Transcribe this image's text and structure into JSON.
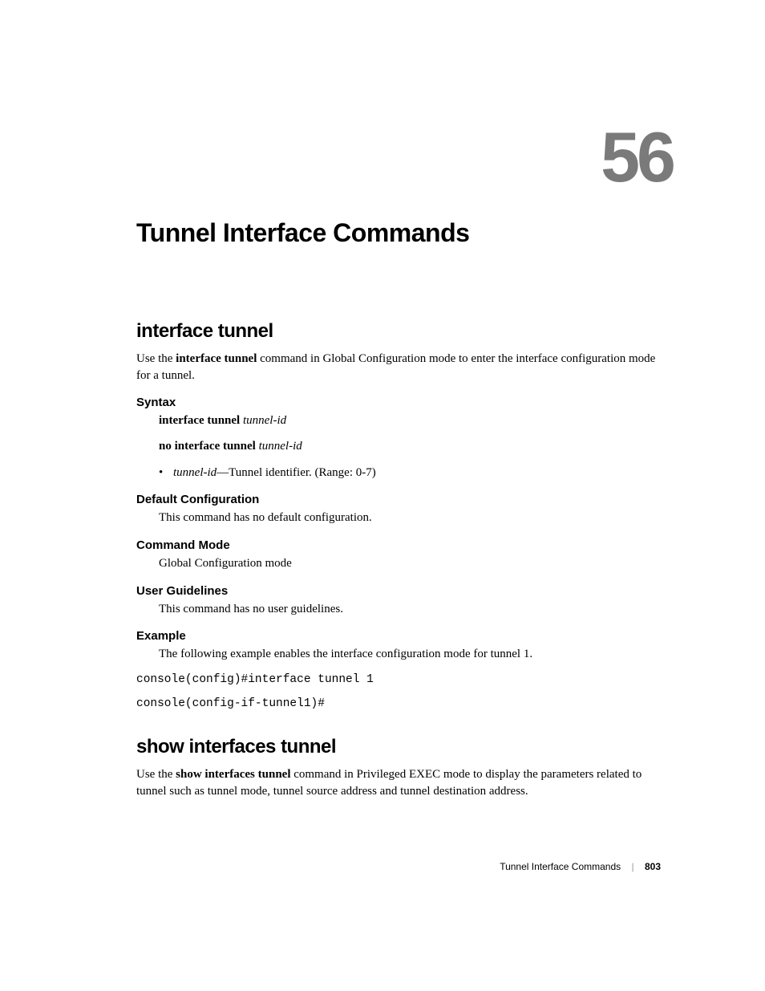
{
  "chapter": {
    "number": "56",
    "title": "Tunnel Interface Commands"
  },
  "sections": {
    "interface_tunnel": {
      "title": "interface tunnel",
      "intro_prefix": "Use the ",
      "intro_cmd": "interface tunnel",
      "intro_suffix": " command in Global Configuration mode to enter the interface configuration mode for a tunnel.",
      "syntax": {
        "heading": "Syntax",
        "line1_cmd": "interface tunnel ",
        "line1_arg": "tunnel-id",
        "line2_cmd": "no interface tunnel ",
        "line2_arg": "tunnel-id",
        "bullet_arg": "tunnel-id",
        "bullet_dash": "—",
        "bullet_desc": "Tunnel identifier",
        "bullet_range": ". (Range: 0-7)"
      },
      "default_config": {
        "heading": "Default Configuration",
        "text": "This command has no default configuration."
      },
      "command_mode": {
        "heading": "Command Mode",
        "text": "Global Configuration mode"
      },
      "user_guidelines": {
        "heading": "User Guidelines",
        "text": "This command has no user guidelines."
      },
      "example": {
        "heading": "Example",
        "text": "The following example enables the interface configuration mode for tunnel 1.",
        "code1": "console(config)#interface tunnel 1",
        "code2": "console(config-if-tunnel1)#"
      }
    },
    "show_interfaces_tunnel": {
      "title": "show interfaces tunnel",
      "intro_prefix": "Use the ",
      "intro_cmd": "show interfaces tunnel",
      "intro_suffix": " command in Privileged EXEC mode to display the parameters related to tunnel such as tunnel mode, tunnel source address and tunnel destination address."
    }
  },
  "footer": {
    "section": "Tunnel Interface Commands",
    "page": "803"
  }
}
